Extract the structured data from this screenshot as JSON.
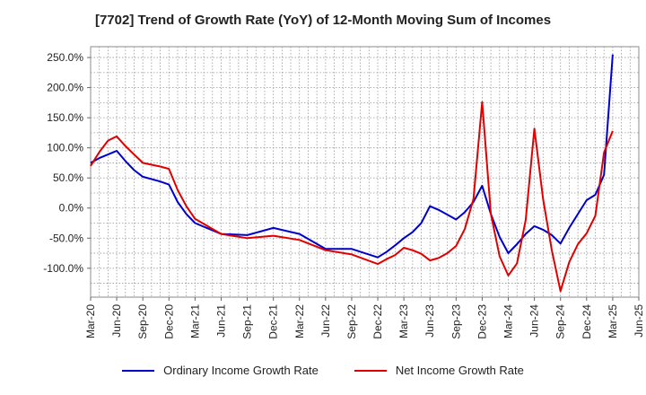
{
  "chart_data": {
    "type": "line",
    "title": "[7702]  Trend of Growth Rate (YoY) of 12-Month Moving Sum of Incomes",
    "xlabel": "",
    "ylabel": "",
    "x_ticks": [
      "Mar-20",
      "Jun-20",
      "Sep-20",
      "Dec-20",
      "Mar-21",
      "Jun-21",
      "Sep-21",
      "Dec-21",
      "Mar-22",
      "Jun-22",
      "Sep-22",
      "Dec-22",
      "Mar-23",
      "Jun-23",
      "Sep-23",
      "Dec-23",
      "Mar-24",
      "Jun-24",
      "Sep-24",
      "Dec-24",
      "Mar-25",
      "Jun-25"
    ],
    "y_ticks": [
      "250.0%",
      "200.0%",
      "150.0%",
      "100.0%",
      "50.0%",
      "0.0%",
      "-50.0%",
      "-100.0%"
    ],
    "y_tick_values": [
      250,
      200,
      150,
      100,
      50,
      0,
      -50,
      -100
    ],
    "ylim": [
      -148,
      268
    ],
    "grid": true,
    "legend_position": "bottom",
    "series": [
      {
        "name": "Ordinary Income Growth Rate",
        "color": "#0000cc",
        "x": [
          "Mar-20",
          "Apr-20",
          "May-20",
          "Jun-20",
          "Jul-20",
          "Aug-20",
          "Sep-20",
          "Oct-20",
          "Nov-20",
          "Dec-20",
          "Jan-21",
          "Feb-21",
          "Mar-21",
          "Jun-21",
          "Sep-21",
          "Dec-21",
          "Mar-22",
          "Jun-22",
          "Sep-22",
          "Dec-22",
          "Jan-23",
          "Feb-23",
          "Mar-23",
          "Apr-23",
          "May-23",
          "Jun-23",
          "Jul-23",
          "Aug-23",
          "Sep-23",
          "Oct-23",
          "Nov-23",
          "Dec-23",
          "Jan-24",
          "Feb-24",
          "Mar-24",
          "Apr-24",
          "May-24",
          "Jun-24",
          "Jul-24",
          "Aug-24",
          "Sep-24",
          "Oct-24",
          "Nov-24",
          "Dec-24",
          "Jan-25",
          "Feb-25",
          "Mar-25"
        ],
        "values": [
          75,
          83,
          89,
          95,
          78,
          63,
          52,
          48,
          44,
          39,
          10,
          -10,
          -25,
          -43,
          -45,
          -33,
          -43,
          -68,
          -68,
          -82,
          -73,
          -62,
          -50,
          -40,
          -25,
          3,
          -3,
          -11,
          -19,
          -7,
          10,
          37,
          -10,
          -48,
          -75,
          -60,
          -43,
          -30,
          -36,
          -45,
          -59,
          -33,
          -10,
          13,
          22,
          55,
          255
        ]
      },
      {
        "name": "Net Income Growth Rate",
        "color": "#e00000",
        "x": [
          "Mar-20",
          "Apr-20",
          "May-20",
          "Jun-20",
          "Jul-20",
          "Aug-20",
          "Sep-20",
          "Oct-20",
          "Nov-20",
          "Dec-20",
          "Jan-21",
          "Feb-21",
          "Mar-21",
          "Jun-21",
          "Sep-21",
          "Dec-21",
          "Mar-22",
          "Jun-22",
          "Sep-22",
          "Dec-22",
          "Jan-23",
          "Feb-23",
          "Mar-23",
          "Apr-23",
          "May-23",
          "Jun-23",
          "Jul-23",
          "Aug-23",
          "Sep-23",
          "Oct-23",
          "Nov-23",
          "Dec-23",
          "Jan-24",
          "Feb-24",
          "Mar-24",
          "Apr-24",
          "May-24",
          "Jun-24",
          "Jul-24",
          "Aug-24",
          "Sep-24",
          "Oct-24",
          "Nov-24",
          "Dec-24",
          "Jan-25",
          "Feb-25",
          "Mar-25"
        ],
        "values": [
          70,
          93,
          112,
          119,
          103,
          89,
          75,
          72,
          69,
          65,
          30,
          3,
          -18,
          -43,
          -50,
          -46,
          -53,
          -70,
          -77,
          -93,
          -85,
          -78,
          -66,
          -70,
          -76,
          -87,
          -83,
          -75,
          -63,
          -35,
          15,
          176,
          -10,
          -80,
          -112,
          -92,
          -20,
          132,
          15,
          -70,
          -138,
          -90,
          -60,
          -42,
          -13,
          92,
          128
        ]
      }
    ]
  }
}
